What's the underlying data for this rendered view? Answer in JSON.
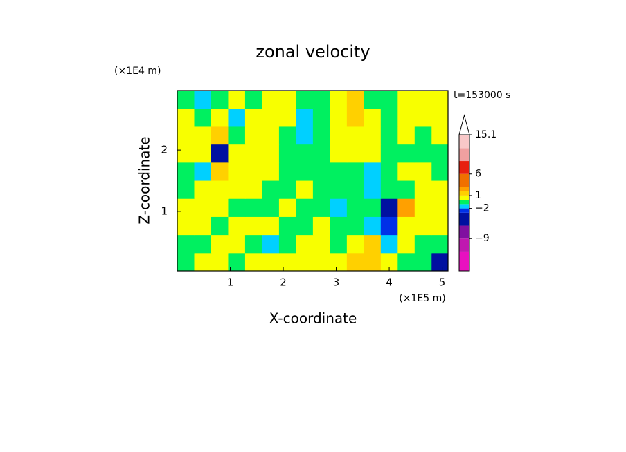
{
  "chart_data": {
    "type": "contour",
    "title": "zonal velocity",
    "x_label": "X-coordinate",
    "y_label": "Z-coordinate",
    "x_unit": "(×1E5 m)",
    "y_unit": "(×1E4 m)",
    "time_label": "t=153000 s",
    "xlim": [
      0,
      5.11
    ],
    "ylim": [
      0.03,
      2.97
    ],
    "xticks": [
      1,
      2,
      3,
      4,
      5
    ],
    "yticks": [
      1,
      2
    ],
    "x": [
      0.16,
      0.48,
      0.8,
      1.12,
      1.44,
      1.76,
      2.08,
      2.4,
      2.72,
      3.04,
      3.36,
      3.68,
      4.0,
      4.32,
      4.64,
      4.96
    ],
    "y": [
      0.18,
      0.47,
      0.77,
      1.06,
      1.36,
      1.65,
      1.95,
      2.24,
      2.53,
      2.83
    ],
    "z": [
      [
        -0.5,
        0.5,
        0.5,
        -0.5,
        0.5,
        0.5,
        0.5,
        0.5,
        0.5,
        0.5,
        1.5,
        1.5,
        0.5,
        -0.5,
        -0.5,
        -4
      ],
      [
        -0.5,
        -0.5,
        0.5,
        0.5,
        -0.5,
        -1.5,
        -0.5,
        0.5,
        0.5,
        -0.5,
        0.5,
        1.5,
        -1.5,
        0.5,
        -0.5,
        -0.5
      ],
      [
        0.5,
        0.5,
        -0.5,
        0.5,
        0.5,
        0.5,
        -0.5,
        -0.5,
        0.5,
        -0.5,
        -0.5,
        -1.5,
        -2.5,
        0.5,
        0.5,
        0.5
      ],
      [
        0.5,
        0.5,
        0.5,
        -0.5,
        -0.5,
        -0.5,
        0.5,
        -0.5,
        -0.5,
        -1.5,
        -0.5,
        -0.5,
        -5,
        2.5,
        0.5,
        0.5
      ],
      [
        -0.5,
        0.5,
        0.5,
        0.5,
        0.5,
        -0.5,
        -0.5,
        0.5,
        -0.5,
        -0.5,
        -0.5,
        -1.5,
        -0.5,
        -0.5,
        0.5,
        0.5
      ],
      [
        -0.5,
        -1.5,
        1.5,
        0.5,
        0.5,
        0.5,
        -0.5,
        -0.5,
        -0.5,
        -0.5,
        -0.5,
        -1.5,
        -0.5,
        0.5,
        0.5,
        -0.5
      ],
      [
        0.5,
        0.5,
        -5,
        0.5,
        0.5,
        0.5,
        -0.5,
        -0.5,
        -0.5,
        0.5,
        0.5,
        0.5,
        -0.5,
        -0.5,
        -0.5,
        -0.5
      ],
      [
        0.5,
        0.5,
        1.5,
        -0.5,
        0.5,
        0.5,
        -0.5,
        -1.5,
        -0.5,
        0.5,
        0.5,
        0.5,
        -0.5,
        0.5,
        -0.5,
        0.5
      ],
      [
        0.5,
        -0.5,
        0.5,
        -1.5,
        0.5,
        0.5,
        0.5,
        -1.5,
        -0.5,
        0.5,
        1.5,
        0.5,
        -0.5,
        0.5,
        0.5,
        0.5
      ],
      [
        -0.5,
        -1.5,
        -0.5,
        0.5,
        -0.5,
        0.5,
        0.5,
        -0.5,
        -0.5,
        0.5,
        1.5,
        -0.5,
        -0.5,
        0.5,
        0.5,
        0.5
      ]
    ],
    "levels": [
      -16.5,
      -12,
      -9,
      -6,
      -3,
      -2,
      -1,
      0,
      1,
      2,
      3,
      6,
      9,
      12,
      15.1
    ],
    "colors": [
      "#e810c0",
      "#c018b0",
      "#8010a0",
      "#0010a0",
      "#0030e8",
      "#00d0ff",
      "#00f060",
      "#f8ff00",
      "#ffd000",
      "#ffa000",
      "#f07000",
      "#e82010",
      "#f0a0a0",
      "#f8c8c8"
    ],
    "colorbar_ticks": [
      15.1,
      6,
      1,
      {
        "value": -2,
        "label": "−2"
      },
      {
        "value": -9,
        "label": "−9"
      }
    ]
  }
}
